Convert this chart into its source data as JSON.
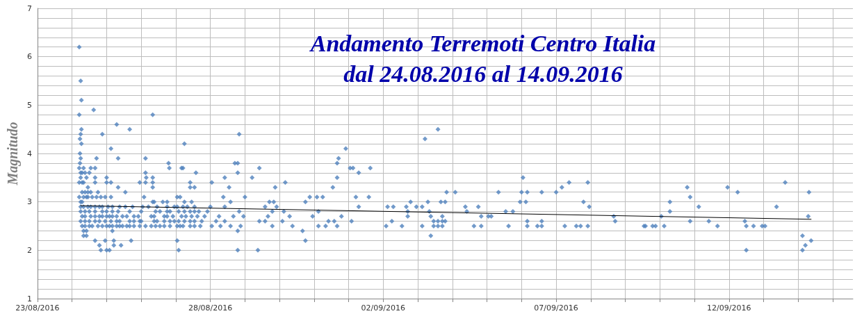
{
  "chart_data": {
    "type": "scatter",
    "title": "Andamento Terremoti Centro Italia",
    "subtitle": "dal 24.08.2016 al 14.09.2016",
    "ylabel": "Magnitudo",
    "xlim": [
      "2016-08-23",
      "2016-09-15T14:00"
    ],
    "xticks": [
      {
        "value": "2016-08-23",
        "label": "23/08/2016"
      },
      {
        "value": "2016-08-24",
        "label": null
      },
      {
        "value": "2016-08-25",
        "label": null
      },
      {
        "value": "2016-08-26",
        "label": null
      },
      {
        "value": "2016-08-27",
        "label": null
      },
      {
        "value": "2016-08-28",
        "label": "28/08/2016"
      },
      {
        "value": "2016-08-29",
        "label": null
      },
      {
        "value": "2016-08-30",
        "label": null
      },
      {
        "value": "2016-08-31",
        "label": null
      },
      {
        "value": "2016-09-01",
        "label": null
      },
      {
        "value": "2016-09-02",
        "label": "02/09/2016"
      },
      {
        "value": "2016-09-03",
        "label": null
      },
      {
        "value": "2016-09-04",
        "label": null
      },
      {
        "value": "2016-09-05",
        "label": null
      },
      {
        "value": "2016-09-06",
        "label": null
      },
      {
        "value": "2016-09-07",
        "label": "07/09/2016"
      },
      {
        "value": "2016-09-08",
        "label": null
      },
      {
        "value": "2016-09-09",
        "label": null
      },
      {
        "value": "2016-09-10",
        "label": null
      },
      {
        "value": "2016-09-11",
        "label": null
      },
      {
        "value": "2016-09-12",
        "label": "12/09/2016"
      },
      {
        "value": "2016-09-13",
        "label": null
      },
      {
        "value": "2016-09-14",
        "label": null
      },
      {
        "value": "2016-09-15",
        "label": null
      }
    ],
    "ylim": [
      1,
      7
    ],
    "yticks": [
      1,
      {
        "value": 1.2,
        "label": null
      },
      {
        "value": 1.4,
        "label": null
      },
      {
        "value": 1.6,
        "label": null
      },
      {
        "value": 1.8,
        "label": null
      },
      2,
      {
        "value": 2.2,
        "label": null
      },
      {
        "value": 2.4,
        "label": null
      },
      {
        "value": 2.6,
        "label": null
      },
      {
        "value": 2.8,
        "label": null
      },
      3,
      {
        "value": 3.2,
        "label": null
      },
      {
        "value": 3.4,
        "label": null
      },
      {
        "value": 3.6,
        "label": null
      },
      {
        "value": 3.8,
        "label": null
      },
      4,
      {
        "value": 4.2,
        "label": null
      },
      {
        "value": 4.4,
        "label": null
      },
      {
        "value": 4.6,
        "label": null
      },
      {
        "value": 4.8,
        "label": null
      },
      5,
      {
        "value": 5.2,
        "label": null
      },
      {
        "value": 5.4,
        "label": null
      },
      {
        "value": 5.6,
        "label": null
      },
      {
        "value": 5.8,
        "label": null
      },
      6,
      {
        "value": 6.2,
        "label": null
      },
      {
        "value": 6.4,
        "label": null
      },
      {
        "value": 6.6,
        "label": null
      },
      {
        "value": 6.8,
        "label": null
      },
      7
    ],
    "grid": true,
    "series": [
      {
        "color": "#4f81bd",
        "marker": "diamond",
        "x": [
          "2016-08-24T05:00",
          "2016-08-24T06:00",
          "2016-08-24T06:30",
          "2016-08-24T15:00",
          "2016-08-24T05:00",
          "2016-08-26T08:00",
          "2016-08-25T07:00",
          "2016-08-24T06:30",
          "2016-08-25T16:00",
          "2016-09-03T14:00",
          "2016-08-24T06:00",
          "2016-08-24T21:00",
          "2016-08-28T20:00",
          "2016-08-24T05:30",
          "2016-09-03T05:00",
          "2016-08-24T06:30",
          "2016-08-27T06:00",
          "2016-08-25T03:00",
          "2016-08-31T22:00",
          "2016-08-24T05:30",
          "2016-08-24T06:00",
          "2016-08-24T17:00",
          "2016-08-25T08:00",
          "2016-08-26T03:00",
          "2016-08-31T17:00",
          "2016-08-24T05:30",
          "2016-08-26T19:00",
          "2016-08-28T17:00",
          "2016-08-28T19:00",
          "2016-08-31T16:00",
          "2016-08-24T05:00",
          "2016-08-24T08:00",
          "2016-08-24T13:00",
          "2016-08-24T16:00",
          "2016-08-26T19:30",
          "2016-08-27T04:00",
          "2016-08-27T05:00",
          "2016-09-01T01:00",
          "2016-09-01T03:00",
          "2016-09-01T15:00",
          "2016-08-29T10:00",
          "2016-08-24T06:00",
          "2016-08-24T07:00",
          "2016-08-24T09:00",
          "2016-08-24T12:00",
          "2016-08-26T03:00",
          "2016-08-27T14:00",
          "2016-08-28T19:00",
          "2016-09-01T07:00",
          "2016-08-24T06:00",
          "2016-08-24T10:00",
          "2016-08-24T16:00",
          "2016-08-25T00:00",
          "2016-08-26T03:30",
          "2016-08-26T08:00",
          "2016-08-28T10:00",
          "2016-08-29T05:00",
          "2016-08-31T16:00",
          "2016-09-06T01:00",
          "2016-08-24T05:00",
          "2016-08-24T07:00",
          "2016-08-24T08:00",
          "2016-08-24T16:00",
          "2016-08-25T00:00",
          "2016-08-25T03:00",
          "2016-08-25T23:00",
          "2016-08-26T03:00",
          "2016-08-26T08:00",
          "2016-08-27T10:00",
          "2016-08-28T01:00",
          "2016-08-30T04:00",
          "2016-09-07T09:00",
          "2016-09-07T22:00",
          "2016-09-13T15:00",
          "2016-08-24T11:00",
          "2016-08-25T08:00",
          "2016-08-26T08:00",
          "2016-08-27T10:00",
          "2016-08-27T13:00",
          "2016-08-28T13:00",
          "2016-08-29T21:00",
          "2016-08-31T13:00",
          "2016-09-07T04:00",
          "2016-09-10T19:00",
          "2016-09-11T23:00",
          "2016-08-24T07:00",
          "2016-08-24T09:00",
          "2016-08-24T11:00",
          "2016-08-24T13:00",
          "2016-08-24T18:00",
          "2016-08-25T13:00",
          "2016-09-03T20:00",
          "2016-09-04T02:00",
          "2016-09-05T08:00",
          "2016-09-06T00:00",
          "2016-09-06T04:00",
          "2016-09-06T14:00",
          "2016-09-07T00:00",
          "2016-09-12T06:00",
          "2016-09-14T07:30",
          "2016-08-24T05:00",
          "2016-08-24T08:00",
          "2016-08-24T10:00",
          "2016-08-24T11:00",
          "2016-08-24T14:00",
          "2016-08-24T17:00",
          "2016-08-24T20:00",
          "2016-08-24T23:00",
          "2016-08-25T03:00",
          "2016-08-26T02:00",
          "2016-08-27T01:00",
          "2016-08-27T03:00",
          "2016-08-28T09:00",
          "2016-08-29T00:00",
          "2016-08-30T21:00",
          "2016-08-31T02:00",
          "2016-08-31T06:00",
          "2016-09-01T05:00",
          "2016-09-01T14:00",
          "2016-09-10T21:00",
          "2016-08-24T06:00",
          "2016-08-24T07:00",
          "2016-08-26T08:00",
          "2016-08-26T09:00",
          "2016-08-26T15:00",
          "2016-08-26T18:00",
          "2016-08-27T06:00",
          "2016-08-27T11:00",
          "2016-08-28T14:00",
          "2016-08-29T17:00",
          "2016-08-29T20:00",
          "2016-08-30T18:00",
          "2016-09-02T19:00",
          "2016-09-03T07:00",
          "2016-09-03T16:00",
          "2016-09-03T19:00",
          "2016-09-05T23:00",
          "2016-09-06T03:00",
          "2016-09-07T19:00",
          "2016-09-10T07:00",
          "2016-08-24T06:00",
          "2016-08-24T08:00",
          "2016-08-24T11:00",
          "2016-08-24T13:00",
          "2016-08-24T16:00",
          "2016-08-24T19:00",
          "2016-08-24T21:00",
          "2016-08-25T01:00",
          "2016-08-25T04:00",
          "2016-08-25T09:00",
          "2016-08-25T13:00",
          "2016-08-25T18:00",
          "2016-08-26T01:00",
          "2016-08-26T05:00",
          "2016-08-26T11:00",
          "2016-08-26T18:00",
          "2016-08-26T23:00",
          "2016-08-27T01:00",
          "2016-08-27T05:00",
          "2016-08-27T08:00",
          "2016-08-27T13:00",
          "2016-08-28T00:00",
          "2016-08-28T10:00",
          "2016-08-29T14:00",
          "2016-08-29T22:00",
          "2016-09-01T07:00",
          "2016-09-02T03:00",
          "2016-09-02T07:00",
          "2016-09-02T16:00",
          "2016-09-02T23:00",
          "2016-09-03T03:00",
          "2016-09-04T09:00",
          "2016-09-04T18:00",
          "2016-09-07T23:00",
          "2016-09-11T03:00",
          "2016-09-13T09:00",
          "2016-08-24T06:00",
          "2016-08-24T09:00",
          "2016-08-24T12:00",
          "2016-08-24T16:00",
          "2016-08-24T21:00",
          "2016-08-25T00:00",
          "2016-08-25T04:00",
          "2016-08-25T08:00",
          "2016-08-25T16:00",
          "2016-08-26T00:00",
          "2016-08-26T10:00",
          "2016-08-26T13:00",
          "2016-08-26T18:00",
          "2016-08-26T20:00",
          "2016-08-27T02:00",
          "2016-08-27T06:00",
          "2016-08-27T10:00",
          "2016-08-27T13:00",
          "2016-08-27T16:00",
          "2016-08-27T22:00",
          "2016-08-28T20:00",
          "2016-08-29T19:00",
          "2016-08-30T03:00",
          "2016-08-31T03:00",
          "2016-09-02T17:00",
          "2016-09-03T08:00",
          "2016-09-04T10:00",
          "2016-09-05T13:00",
          "2016-09-05T18:00",
          "2016-09-10T07:00",
          "2016-08-24T07:00",
          "2016-08-24T09:00",
          "2016-08-24T13:00",
          "2016-08-24T16:00",
          "2016-08-24T19:00",
          "2016-08-24T21:00",
          "2016-08-25T00:00",
          "2016-08-25T02:00",
          "2016-08-25T04:00",
          "2016-08-25T07:00",
          "2016-08-25T11:00",
          "2016-08-25T14:00",
          "2016-08-25T19:00",
          "2016-08-25T22:00",
          "2016-08-26T07:00",
          "2016-08-26T09:00",
          "2016-08-26T16:00",
          "2016-08-26T18:00",
          "2016-08-26T22:00",
          "2016-08-27T04:00",
          "2016-08-27T07:00",
          "2016-08-27T11:00",
          "2016-08-27T15:00",
          "2016-08-27T20:00",
          "2016-08-28T06:00",
          "2016-08-28T16:00",
          "2016-08-28T23:00",
          "2016-08-29T16:00",
          "2016-08-30T07:00",
          "2016-08-30T23:00",
          "2016-08-31T19:00",
          "2016-09-02T17:00",
          "2016-09-03T09:00",
          "2016-09-03T17:00",
          "2016-09-04T20:00",
          "2016-09-05T01:00",
          "2016-09-05T03:00",
          "2016-09-08T16:00",
          "2016-09-10T01:00",
          "2016-09-14T07:00",
          "2016-08-24T06:00",
          "2016-08-24T09:00",
          "2016-08-24T12:00",
          "2016-08-24T16:00",
          "2016-08-24T19:00",
          "2016-08-24T23:00",
          "2016-08-25T03:00",
          "2016-08-25T07:00",
          "2016-08-25T09:00",
          "2016-08-25T16:00",
          "2016-08-25T19:00",
          "2016-08-25T23:00",
          "2016-08-26T00:00",
          "2016-08-26T09:00",
          "2016-08-26T11:00",
          "2016-08-26T16:00",
          "2016-08-26T20:00",
          "2016-08-26T23:00",
          "2016-08-27T02:00",
          "2016-08-27T06:00",
          "2016-08-27T10:00",
          "2016-08-27T13:00",
          "2016-08-27T18:00",
          "2016-08-28T04:00",
          "2016-08-28T10:00",
          "2016-08-29T10:00",
          "2016-08-29T14:00",
          "2016-08-30T02:00",
          "2016-08-31T10:00",
          "2016-08-31T14:00",
          "2016-09-01T02:00",
          "2016-09-02T06:00",
          "2016-09-03T11:00",
          "2016-09-03T14:00",
          "2016-09-03T17:00",
          "2016-09-03T19:00",
          "2016-09-06T04:00",
          "2016-09-06T14:00",
          "2016-09-08T17:00",
          "2016-09-10T21:00",
          "2016-09-11T10:00",
          "2016-09-12T11:00",
          "2016-08-24T07:00",
          "2016-08-24T09:00",
          "2016-08-24T12:00",
          "2016-08-24T14:00",
          "2016-08-24T18:00",
          "2016-08-24T21:00",
          "2016-08-25T00:00",
          "2016-08-25T02:00",
          "2016-08-25T04:00",
          "2016-08-25T07:00",
          "2016-08-25T09:00",
          "2016-08-25T11:00",
          "2016-08-25T14:00",
          "2016-08-25T16:00",
          "2016-08-25T19:00",
          "2016-08-25T23:00",
          "2016-08-26T03:00",
          "2016-08-26T07:00",
          "2016-08-26T10:00",
          "2016-08-26T13:00",
          "2016-08-26T16:00",
          "2016-08-26T20:00",
          "2016-08-27T01:00",
          "2016-08-27T03:00",
          "2016-08-27T05:00",
          "2016-08-27T10:00",
          "2016-08-27T13:00",
          "2016-08-27T17:00",
          "2016-08-28T01:00",
          "2016-08-28T07:00",
          "2016-08-28T14:00",
          "2016-08-28T21:00",
          "2016-08-29T19:00",
          "2016-08-30T09:00",
          "2016-08-31T03:00",
          "2016-08-31T08:00",
          "2016-08-31T16:00",
          "2016-09-02T02:00",
          "2016-09-02T13:00",
          "2016-09-03T03:00",
          "2016-09-03T11:00",
          "2016-09-03T14:00",
          "2016-09-03T17:00",
          "2016-09-04T15:00",
          "2016-09-04T20:00",
          "2016-09-05T15:00",
          "2016-09-06T04:00",
          "2016-09-06T11:00",
          "2016-09-06T14:00",
          "2016-09-07T06:00",
          "2016-09-07T14:00",
          "2016-09-07T17:00",
          "2016-09-07T22:00",
          "2016-09-09T13:00",
          "2016-09-09T14:00",
          "2016-09-09T19:00",
          "2016-09-09T21:00",
          "2016-09-10T03:00",
          "2016-09-11T16:00",
          "2016-09-12T12:00",
          "2016-09-12T17:00",
          "2016-09-12T23:00",
          "2016-09-13T01:00",
          "2016-08-24T08:00",
          "2016-08-24T10:00",
          "2016-08-25T04:00",
          "2016-08-28T19:00",
          "2016-08-30T16:00",
          "2016-08-24T08:00",
          "2016-08-24T10:00",
          "2016-09-03T09:00",
          "2016-09-14T03:00",
          "2016-08-24T16:00",
          "2016-08-24T23:00",
          "2016-08-25T05:00",
          "2016-08-25T17:00",
          "2016-08-27T01:00",
          "2016-08-30T18:00",
          "2016-09-14T09:00",
          "2016-08-24T19:00",
          "2016-08-25T05:00",
          "2016-08-25T10:00",
          "2016-09-14T05:00",
          "2016-08-24T20:00",
          "2016-08-25T00:00",
          "2016-08-25T02:00",
          "2016-08-27T02:00",
          "2016-08-28T19:00",
          "2016-08-29T09:00",
          "2016-09-12T12:00",
          "2016-09-14T03:00"
        ],
        "values": [
          6.2,
          5.5,
          5.1,
          4.9,
          4.8,
          4.8,
          4.6,
          4.5,
          4.5,
          4.5,
          4.4,
          4.4,
          4.4,
          4.3,
          4.3,
          4.2,
          4.2,
          4.1,
          4.1,
          4.0,
          3.9,
          3.9,
          3.9,
          3.9,
          3.9,
          3.8,
          3.8,
          3.8,
          3.8,
          3.8,
          3.7,
          3.7,
          3.7,
          3.7,
          3.7,
          3.7,
          3.7,
          3.7,
          3.7,
          3.7,
          3.7,
          3.6,
          3.6,
          3.6,
          3.6,
          3.6,
          3.6,
          3.6,
          3.6,
          3.5,
          3.5,
          3.5,
          3.5,
          3.5,
          3.5,
          3.5,
          3.5,
          3.5,
          3.5,
          3.4,
          3.4,
          3.4,
          3.4,
          3.4,
          3.4,
          3.4,
          3.4,
          3.4,
          3.4,
          3.4,
          3.4,
          3.4,
          3.4,
          3.4,
          3.3,
          3.3,
          3.3,
          3.3,
          3.3,
          3.3,
          3.3,
          3.3,
          3.3,
          3.3,
          3.3,
          3.2,
          3.2,
          3.2,
          3.2,
          3.2,
          3.2,
          3.2,
          3.2,
          3.2,
          3.2,
          3.2,
          3.2,
          3.2,
          3.2,
          3.2,
          3.1,
          3.1,
          3.1,
          3.1,
          3.1,
          3.1,
          3.1,
          3.1,
          3.1,
          3.1,
          3.1,
          3.1,
          3.1,
          3.1,
          3.1,
          3.1,
          3.1,
          3.1,
          3.1,
          3.1,
          3.0,
          3.0,
          3.0,
          3.0,
          3.0,
          3.0,
          3.0,
          3.0,
          3.0,
          3.0,
          3.0,
          3.0,
          3.0,
          3.0,
          3.0,
          3.0,
          3.0,
          3.0,
          3.0,
          3.0,
          2.9,
          2.9,
          2.9,
          2.9,
          2.9,
          2.9,
          2.9,
          2.9,
          2.9,
          2.9,
          2.9,
          2.9,
          2.9,
          2.9,
          2.9,
          2.9,
          2.9,
          2.9,
          2.9,
          2.9,
          2.9,
          2.9,
          2.9,
          2.9,
          2.9,
          2.9,
          2.9,
          2.9,
          2.9,
          2.9,
          2.9,
          2.9,
          2.9,
          2.9,
          2.9,
          2.9,
          2.8,
          2.8,
          2.8,
          2.8,
          2.8,
          2.8,
          2.8,
          2.8,
          2.8,
          2.8,
          2.8,
          2.8,
          2.8,
          2.8,
          2.8,
          2.8,
          2.8,
          2.8,
          2.8,
          2.8,
          2.8,
          2.8,
          2.8,
          2.8,
          2.8,
          2.8,
          2.8,
          2.8,
          2.8,
          2.8,
          2.7,
          2.7,
          2.7,
          2.7,
          2.7,
          2.7,
          2.7,
          2.7,
          2.7,
          2.7,
          2.7,
          2.7,
          2.7,
          2.7,
          2.7,
          2.7,
          2.7,
          2.7,
          2.7,
          2.7,
          2.7,
          2.7,
          2.7,
          2.7,
          2.7,
          2.7,
          2.7,
          2.7,
          2.7,
          2.7,
          2.7,
          2.7,
          2.7,
          2.7,
          2.7,
          2.7,
          2.7,
          2.7,
          2.7,
          2.7,
          2.6,
          2.6,
          2.6,
          2.6,
          2.6,
          2.6,
          2.6,
          2.6,
          2.6,
          2.6,
          2.6,
          2.6,
          2.6,
          2.6,
          2.6,
          2.6,
          2.6,
          2.6,
          2.6,
          2.6,
          2.6,
          2.6,
          2.6,
          2.6,
          2.6,
          2.6,
          2.6,
          2.6,
          2.6,
          2.6,
          2.6,
          2.6,
          2.6,
          2.6,
          2.6,
          2.6,
          2.6,
          2.6,
          2.6,
          2.6,
          2.6,
          2.6,
          2.5,
          2.5,
          2.5,
          2.5,
          2.5,
          2.5,
          2.5,
          2.5,
          2.5,
          2.5,
          2.5,
          2.5,
          2.5,
          2.5,
          2.5,
          2.5,
          2.5,
          2.5,
          2.5,
          2.5,
          2.5,
          2.5,
          2.5,
          2.5,
          2.5,
          2.5,
          2.5,
          2.5,
          2.5,
          2.5,
          2.5,
          2.5,
          2.5,
          2.5,
          2.5,
          2.5,
          2.5,
          2.5,
          2.5,
          2.5,
          2.5,
          2.5,
          2.5,
          2.5,
          2.5,
          2.5,
          2.5,
          2.5,
          2.5,
          2.5,
          2.5,
          2.5,
          2.5,
          2.5,
          2.5,
          2.5,
          2.5,
          2.5,
          2.5,
          2.5,
          2.5,
          2.5,
          2.5,
          2.4,
          2.4,
          2.4,
          2.4,
          2.4,
          2.3,
          2.3,
          2.3,
          2.3,
          2.2,
          2.2,
          2.2,
          2.2,
          2.2,
          2.2,
          2.2,
          2.1,
          2.1,
          2.1,
          2.1,
          2.0,
          2.0,
          2.0,
          2.0,
          2.0,
          2.0,
          2.0,
          2.0
        ]
      },
      {
        "type": "line",
        "marker": "none",
        "color": "#000000",
        "x": [
          "2016-08-24T06:00",
          "2016-09-14T09:00"
        ],
        "values": [
          2.92,
          2.64
        ]
      }
    ]
  }
}
